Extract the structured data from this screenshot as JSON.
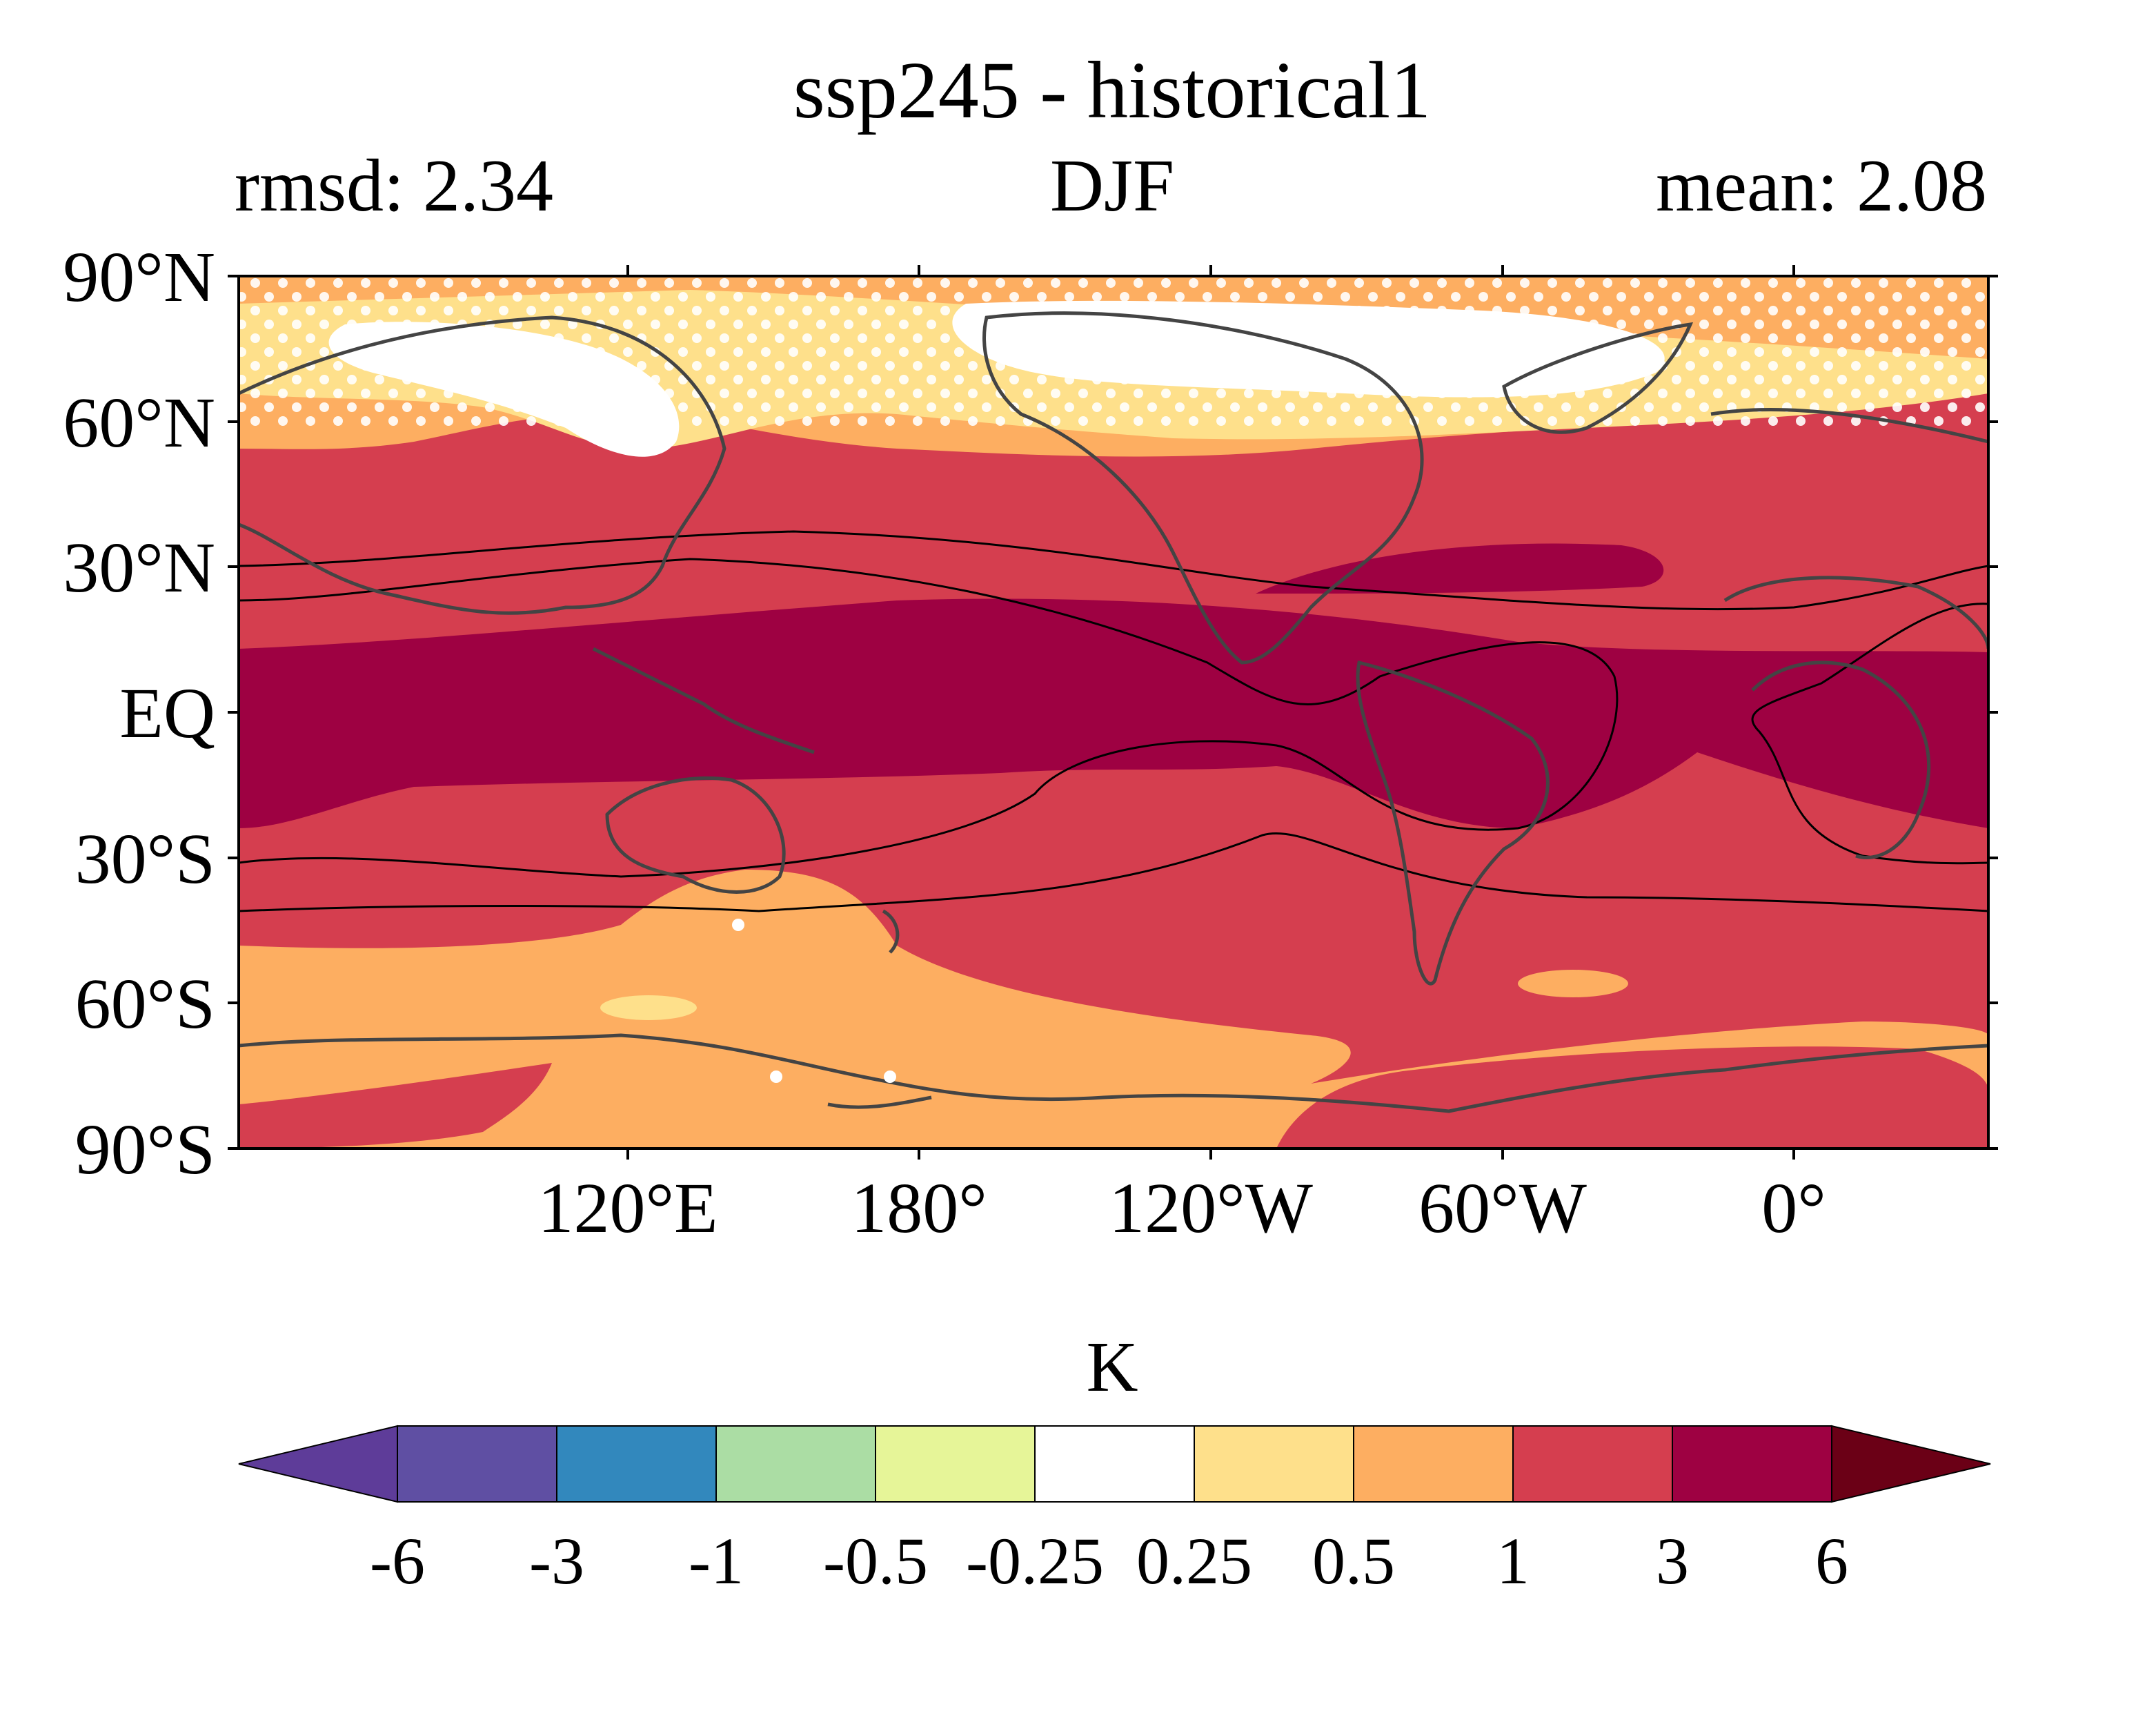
{
  "title": "ssp245 - historical1",
  "left_label": "rmsd: 2.34",
  "center_label": "DJF",
  "right_label": "mean: 2.08",
  "lat_ticks": [
    "90°N",
    "60°N",
    "30°N",
    "EQ",
    "30°S",
    "60°S",
    "90°S"
  ],
  "lon_ticks": [
    "120°E",
    "180°",
    "120°W",
    "60°W",
    "0°"
  ],
  "colorbar": {
    "unit": "K",
    "levels": [
      "-6",
      "-3",
      "-1",
      "-0.5",
      "-0.25",
      "0.25",
      "0.5",
      "1",
      "3",
      "6"
    ],
    "colors": [
      "#5e3c99",
      "#5f4fa3",
      "#3288bd",
      "#abdda4",
      "#e6f598",
      "#ffffff",
      "#fee08b",
      "#fdae61",
      "#d53e4f",
      "#9e0142",
      "#6b0016"
    ]
  }
}
